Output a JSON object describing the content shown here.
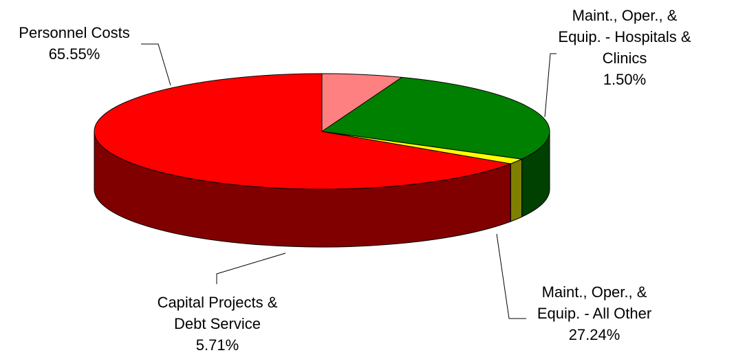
{
  "chart_data": {
    "type": "pie",
    "style": "3d",
    "title": "",
    "slices": [
      {
        "id": "personnel",
        "label_lines": [
          "Personnel Costs"
        ],
        "percent_label": "65.55%",
        "value": 65.55,
        "color": "#ff0000",
        "side_color": "#800000"
      },
      {
        "id": "moe_hospitals",
        "label_lines": [
          "Maint., Oper., &",
          "Equip. - Hospitals &",
          "Clinics"
        ],
        "percent_label": "1.50%",
        "value": 1.5,
        "color": "#ffff00",
        "side_color": "#808000"
      },
      {
        "id": "moe_other",
        "label_lines": [
          "Maint., Oper., &",
          "Equip. - All Other"
        ],
        "percent_label": "27.24%",
        "value": 27.24,
        "color": "#008000",
        "side_color": "#004000"
      },
      {
        "id": "capital",
        "label_lines": [
          "Capital Projects &",
          "Debt Service"
        ],
        "percent_label": "5.71%",
        "value": 5.71,
        "color": "#ff8080",
        "side_color": "#804040"
      }
    ]
  }
}
